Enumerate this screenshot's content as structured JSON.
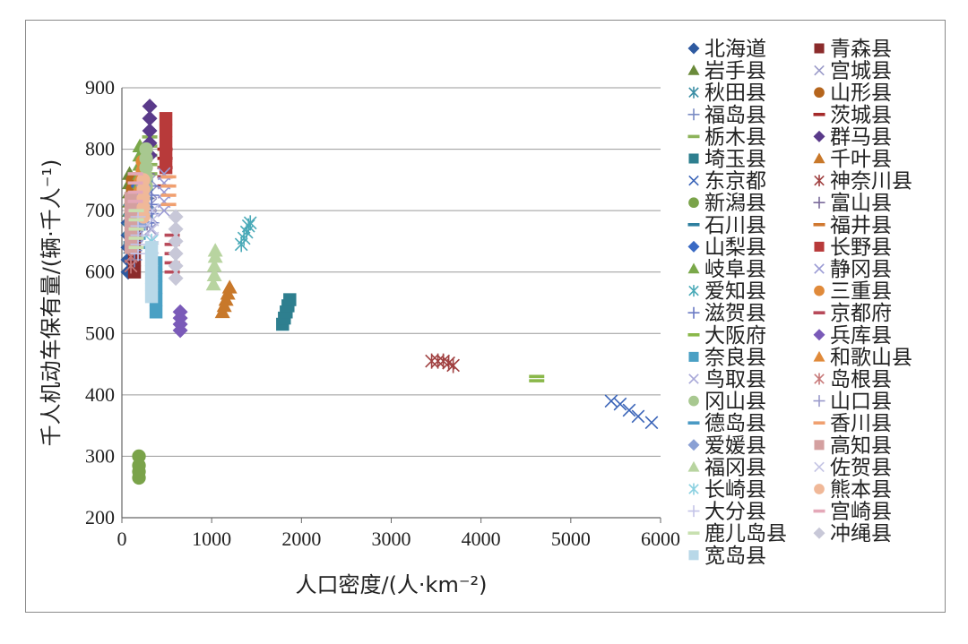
{
  "chart_data": {
    "type": "scatter",
    "title": "",
    "xlabel": "人口密度/(人·km⁻²)",
    "ylabel": "千人机动车保有量/(辆·千人⁻¹)",
    "xlim": [
      0,
      6000
    ],
    "ylim": [
      200,
      900
    ],
    "xticks": [
      "0",
      "1000",
      "2000",
      "3000",
      "4000",
      "5000",
      "6000"
    ],
    "yticks": [
      "200",
      "300",
      "400",
      "500",
      "600",
      "700",
      "800",
      "900"
    ],
    "grid": "horizontal",
    "legend_position": "right",
    "series": [
      {
        "name": "北海道",
        "color": "#2e5aa0",
        "marker": "diamond",
        "points": [
          [
            70,
            600
          ],
          [
            70,
            620
          ],
          [
            70,
            640
          ],
          [
            70,
            660
          ],
          [
            70,
            680
          ]
        ]
      },
      {
        "name": "青森县",
        "color": "#8b2b2b",
        "marker": "square",
        "points": [
          [
            140,
            600
          ],
          [
            140,
            620
          ],
          [
            140,
            640
          ],
          [
            140,
            660
          ],
          [
            140,
            680
          ]
        ]
      },
      {
        "name": "岩手县",
        "color": "#6a8a3a",
        "marker": "triangle",
        "points": [
          [
            85,
            700
          ],
          [
            85,
            715
          ],
          [
            85,
            730
          ],
          [
            85,
            745
          ],
          [
            85,
            760
          ]
        ]
      },
      {
        "name": "宫城县",
        "color": "#9b9bc9",
        "marker": "x",
        "points": [
          [
            320,
            670
          ],
          [
            320,
            690
          ],
          [
            320,
            710
          ],
          [
            320,
            730
          ],
          [
            320,
            750
          ]
        ]
      },
      {
        "name": "秋田县",
        "color": "#3b8ea5",
        "marker": "asterisk",
        "points": [
          [
            85,
            640
          ],
          [
            85,
            655
          ],
          [
            85,
            670
          ],
          [
            85,
            685
          ],
          [
            85,
            700
          ]
        ]
      },
      {
        "name": "山形县",
        "color": "#b5651d",
        "marker": "circle",
        "points": [
          [
            120,
            690
          ],
          [
            120,
            705
          ],
          [
            120,
            720
          ],
          [
            120,
            735
          ],
          [
            120,
            750
          ]
        ]
      },
      {
        "name": "福岛县",
        "color": "#7a8cc4",
        "marker": "plus",
        "points": [
          [
            140,
            620
          ],
          [
            140,
            635
          ],
          [
            140,
            650
          ],
          [
            140,
            665
          ],
          [
            140,
            680
          ]
        ]
      },
      {
        "name": "茨城县",
        "color": "#a52a2a",
        "marker": "dash",
        "points": [
          [
            480,
            740
          ],
          [
            480,
            755
          ],
          [
            480,
            770
          ],
          [
            480,
            785
          ],
          [
            480,
            800
          ]
        ]
      },
      {
        "name": "栃木县",
        "color": "#8db35a",
        "marker": "dash",
        "points": [
          [
            310,
            760
          ],
          [
            310,
            775
          ],
          [
            310,
            790
          ],
          [
            310,
            805
          ],
          [
            310,
            820
          ]
        ]
      },
      {
        "name": "群马县",
        "color": "#5a3a8a",
        "marker": "diamond",
        "points": [
          [
            310,
            790
          ],
          [
            310,
            810
          ],
          [
            310,
            830
          ],
          [
            310,
            850
          ],
          [
            310,
            870
          ]
        ]
      },
      {
        "name": "埼玉县",
        "color": "#2e7f8f",
        "marker": "square",
        "points": [
          [
            1790,
            515
          ],
          [
            1810,
            525
          ],
          [
            1830,
            535
          ],
          [
            1850,
            545
          ],
          [
            1870,
            555
          ]
        ]
      },
      {
        "name": "千叶县",
        "color": "#c8782a",
        "marker": "triangle",
        "points": [
          [
            1120,
            535
          ],
          [
            1140,
            545
          ],
          [
            1160,
            555
          ],
          [
            1180,
            565
          ],
          [
            1200,
            575
          ]
        ]
      },
      {
        "name": "东京都",
        "color": "#3a64b8",
        "marker": "x",
        "points": [
          [
            5450,
            390
          ],
          [
            5550,
            385
          ],
          [
            5650,
            375
          ],
          [
            5750,
            365
          ],
          [
            5900,
            355
          ]
        ]
      },
      {
        "name": "神奈川县",
        "color": "#a04040",
        "marker": "asterisk",
        "points": [
          [
            3450,
            455
          ],
          [
            3520,
            455
          ],
          [
            3580,
            455
          ],
          [
            3640,
            452
          ],
          [
            3690,
            448
          ]
        ]
      },
      {
        "name": "新潟县",
        "color": "#7aa34a",
        "marker": "circle",
        "points": [
          [
            190,
            265
          ],
          [
            190,
            275
          ],
          [
            190,
            285
          ],
          [
            190,
            300
          ]
        ]
      },
      {
        "name": "富山县",
        "color": "#7a6a9a",
        "marker": "plus",
        "points": [
          [
            280,
            680
          ],
          [
            280,
            700
          ],
          [
            280,
            720
          ],
          [
            280,
            740
          ],
          [
            280,
            760
          ]
        ]
      },
      {
        "name": "石川县",
        "color": "#2e7f9f",
        "marker": "dash",
        "points": [
          [
            260,
            690
          ],
          [
            260,
            705
          ],
          [
            260,
            720
          ],
          [
            260,
            735
          ],
          [
            260,
            750
          ]
        ]
      },
      {
        "name": "福井县",
        "color": "#d07830",
        "marker": "dash",
        "points": [
          [
            200,
            700
          ],
          [
            200,
            715
          ],
          [
            200,
            730
          ],
          [
            200,
            745
          ],
          [
            200,
            760
          ]
        ]
      },
      {
        "name": "山梨县",
        "color": "#3a6ac4",
        "marker": "diamond",
        "points": [
          [
            180,
            680
          ],
          [
            180,
            695
          ],
          [
            180,
            710
          ],
          [
            180,
            725
          ],
          [
            180,
            740
          ]
        ]
      },
      {
        "name": "长野县",
        "color": "#b83a3a",
        "marker": "square",
        "points": [
          [
            490,
            770
          ],
          [
            490,
            790
          ],
          [
            490,
            810
          ],
          [
            490,
            830
          ],
          [
            490,
            850
          ]
        ]
      },
      {
        "name": "岐阜县",
        "color": "#7aa84a",
        "marker": "triangle",
        "points": [
          [
            200,
            745
          ],
          [
            200,
            760
          ],
          [
            200,
            775
          ],
          [
            200,
            790
          ],
          [
            200,
            805
          ]
        ]
      },
      {
        "name": "静冈县",
        "color": "#9a9ad4",
        "marker": "x",
        "points": [
          [
            470,
            700
          ],
          [
            470,
            715
          ],
          [
            470,
            730
          ],
          [
            470,
            745
          ],
          [
            470,
            760
          ]
        ]
      },
      {
        "name": "爱知县",
        "color": "#4aaab8",
        "marker": "asterisk",
        "points": [
          [
            1330,
            645
          ],
          [
            1360,
            655
          ],
          [
            1390,
            665
          ],
          [
            1410,
            675
          ],
          [
            1430,
            680
          ]
        ]
      },
      {
        "name": "三重县",
        "color": "#e08a3a",
        "marker": "circle",
        "points": [
          [
            230,
            720
          ],
          [
            230,
            735
          ],
          [
            230,
            750
          ],
          [
            230,
            765
          ],
          [
            230,
            780
          ]
        ]
      },
      {
        "name": "滋贺县",
        "color": "#6a7ac4",
        "marker": "plus",
        "points": [
          [
            330,
            680
          ],
          [
            330,
            695
          ],
          [
            330,
            710
          ],
          [
            330,
            725
          ],
          [
            330,
            740
          ]
        ]
      },
      {
        "name": "京都府",
        "color": "#b84a5a",
        "marker": "dash",
        "points": [
          [
            560,
            600
          ],
          [
            560,
            615
          ],
          [
            560,
            630
          ],
          [
            560,
            645
          ],
          [
            560,
            660
          ]
        ]
      },
      {
        "name": "大阪府",
        "color": "#8ab84a",
        "marker": "dash",
        "points": [
          [
            4620,
            423
          ],
          [
            4620,
            430
          ]
        ]
      },
      {
        "name": "兵库县",
        "color": "#7a5ab8",
        "marker": "diamond",
        "points": [
          [
            650,
            505
          ],
          [
            650,
            515
          ],
          [
            650,
            525
          ],
          [
            650,
            535
          ]
        ]
      },
      {
        "name": "奈良县",
        "color": "#4aa0c4",
        "marker": "square",
        "points": [
          [
            380,
            535
          ],
          [
            380,
            555
          ],
          [
            380,
            575
          ],
          [
            380,
            595
          ],
          [
            380,
            615
          ]
        ]
      },
      {
        "name": "和歌山县",
        "color": "#e08a3a",
        "marker": "triangle",
        "points": [
          [
            200,
            695
          ],
          [
            200,
            710
          ],
          [
            200,
            725
          ],
          [
            200,
            740
          ],
          [
            200,
            755
          ]
        ]
      },
      {
        "name": "鸟取县",
        "color": "#a8a8d8",
        "marker": "x",
        "points": [
          [
            170,
            660
          ],
          [
            170,
            675
          ],
          [
            170,
            690
          ],
          [
            170,
            705
          ],
          [
            170,
            720
          ]
        ]
      },
      {
        "name": "岛根县",
        "color": "#c87a7a",
        "marker": "asterisk",
        "points": [
          [
            100,
            610
          ],
          [
            100,
            625
          ],
          [
            100,
            640
          ],
          [
            100,
            655
          ],
          [
            100,
            670
          ]
        ]
      },
      {
        "name": "冈山县",
        "color": "#a8c890",
        "marker": "circle",
        "points": [
          [
            270,
            740
          ],
          [
            270,
            755
          ],
          [
            270,
            770
          ],
          [
            270,
            785
          ],
          [
            270,
            800
          ]
        ]
      },
      {
        "name": "山口县",
        "color": "#9a9acb",
        "marker": "plus",
        "points": [
          [
            220,
            660
          ],
          [
            220,
            675
          ],
          [
            220,
            690
          ],
          [
            220,
            705
          ],
          [
            220,
            720
          ]
        ]
      },
      {
        "name": "德岛县",
        "color": "#4a9ac4",
        "marker": "dash",
        "points": [
          [
            180,
            640
          ],
          [
            180,
            655
          ],
          [
            180,
            670
          ],
          [
            180,
            685
          ],
          [
            180,
            700
          ]
        ]
      },
      {
        "name": "香川县",
        "color": "#f0a070",
        "marker": "dash",
        "points": [
          [
            520,
            710
          ],
          [
            520,
            725
          ],
          [
            520,
            740
          ],
          [
            520,
            755
          ]
        ]
      },
      {
        "name": "爱媛县",
        "color": "#8aa0d4",
        "marker": "diamond",
        "points": [
          [
            240,
            680
          ],
          [
            240,
            695
          ],
          [
            240,
            710
          ],
          [
            240,
            725
          ],
          [
            240,
            740
          ]
        ]
      },
      {
        "name": "高知县",
        "color": "#d4a0a0",
        "marker": "square",
        "points": [
          [
            100,
            640
          ],
          [
            100,
            660
          ],
          [
            100,
            680
          ],
          [
            100,
            700
          ],
          [
            100,
            720
          ]
        ]
      },
      {
        "name": "福冈县",
        "color": "#b8d4a0",
        "marker": "triangle",
        "points": [
          [
            1020,
            580
          ],
          [
            1030,
            595
          ],
          [
            1030,
            610
          ],
          [
            1040,
            625
          ],
          [
            1040,
            635
          ]
        ]
      },
      {
        "name": "佐贺县",
        "color": "#c4c4e4",
        "marker": "x",
        "points": [
          [
            340,
            640
          ],
          [
            340,
            655
          ],
          [
            340,
            670
          ],
          [
            340,
            685
          ],
          [
            340,
            700
          ]
        ]
      },
      {
        "name": "长崎县",
        "color": "#8ad0e0",
        "marker": "asterisk",
        "points": [
          [
            330,
            590
          ],
          [
            330,
            605
          ],
          [
            330,
            620
          ],
          [
            330,
            635
          ],
          [
            330,
            650
          ]
        ]
      },
      {
        "name": "熊本县",
        "color": "#f0b898",
        "marker": "circle",
        "points": [
          [
            240,
            690
          ],
          [
            240,
            705
          ],
          [
            240,
            720
          ],
          [
            240,
            735
          ],
          [
            240,
            750
          ]
        ]
      },
      {
        "name": "大分县",
        "color": "#c4c4e8",
        "marker": "plus",
        "points": [
          [
            180,
            630
          ],
          [
            180,
            645
          ],
          [
            180,
            660
          ],
          [
            180,
            675
          ],
          [
            180,
            690
          ]
        ]
      },
      {
        "name": "宫崎县",
        "color": "#e4a8b8",
        "marker": "dash",
        "points": [
          [
            150,
            700
          ],
          [
            150,
            715
          ],
          [
            150,
            730
          ],
          [
            150,
            745
          ],
          [
            150,
            760
          ]
        ]
      },
      {
        "name": "鹿儿岛县",
        "color": "#c8e0b0",
        "marker": "dash",
        "points": [
          [
            160,
            640
          ],
          [
            160,
            655
          ],
          [
            160,
            670
          ],
          [
            160,
            685
          ],
          [
            160,
            700
          ]
        ]
      },
      {
        "name": "冲绳县",
        "color": "#c8c8d8",
        "marker": "diamond",
        "points": [
          [
            600,
            590
          ],
          [
            600,
            610
          ],
          [
            600,
            630
          ],
          [
            600,
            650
          ],
          [
            600,
            670
          ],
          [
            600,
            690
          ]
        ]
      },
      {
        "name": "宽岛县",
        "color": "#b8d8e8",
        "marker": "square",
        "points": [
          [
            330,
            560
          ],
          [
            330,
            580
          ],
          [
            330,
            600
          ],
          [
            330,
            620
          ],
          [
            330,
            640
          ]
        ]
      }
    ]
  }
}
